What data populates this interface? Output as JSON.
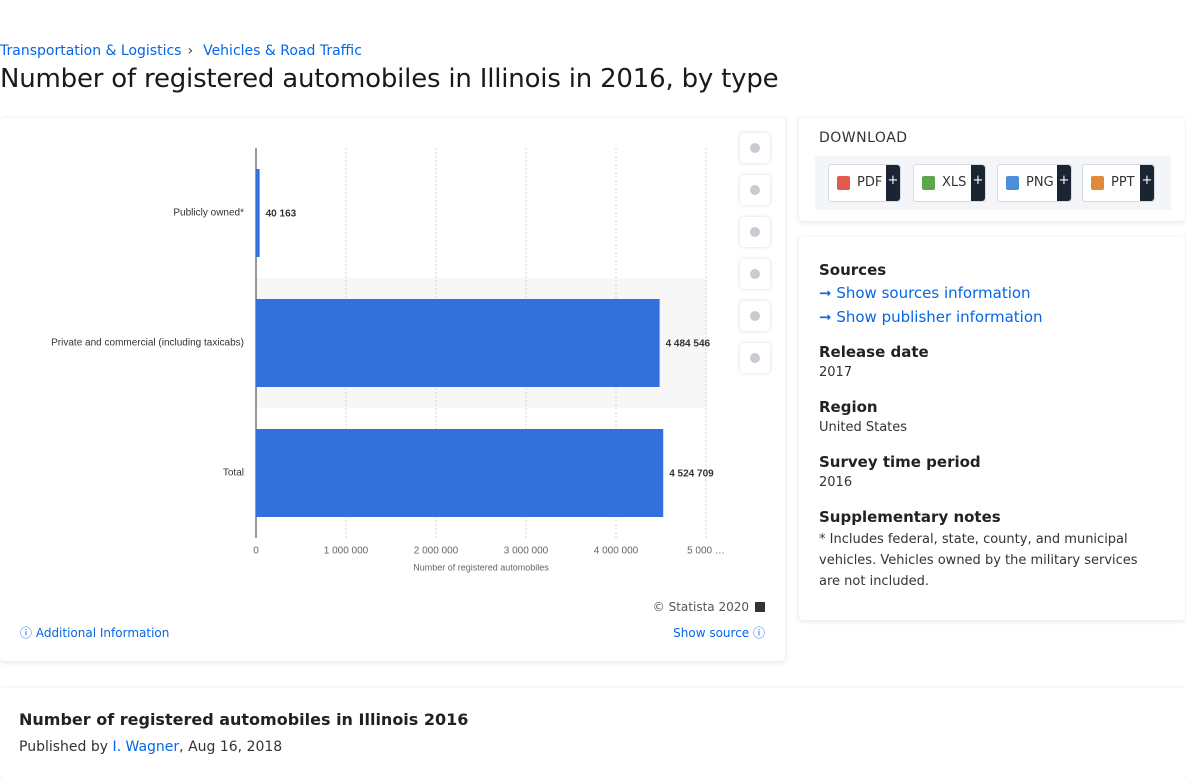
{
  "breadcrumbs": [
    "Transportation & Logistics",
    "Vehicles & Road Traffic"
  ],
  "breadcrumb_separator": "›",
  "title": "Number of registered automobiles in Illinois in 2016, by type",
  "chart_data": {
    "type": "hbar",
    "categories": [
      "Publicly owned*",
      "Private and commercial (including taxicabs)",
      "Total"
    ],
    "values": [
      40163,
      4484546,
      4524709
    ],
    "value_labels": [
      "40 163",
      "4 484 546",
      "4 524 709"
    ],
    "color": "#3370db",
    "xlim": [
      0,
      5000000
    ],
    "xticks": [
      0,
      {
        "value": 1000000,
        "label": "1 000 000"
      },
      {
        "value": 2000000,
        "label": "2 000 000"
      },
      {
        "value": 3000000,
        "label": "3 000 000"
      },
      {
        "value": 4000000,
        "label": "4 000 000"
      },
      {
        "value": 5000000,
        "label": "5 000 …"
      }
    ],
    "xlabel": "Number of registered automobiles",
    "grid": true
  },
  "chart_footer": {
    "copyright": "© Statista 2020",
    "additional": "Additional Information",
    "show_source": "Show source"
  },
  "download": {
    "title": "DOWNLOAD",
    "buttons": [
      "PDF",
      "XLS",
      "PNG",
      "PPT"
    ],
    "more": "+"
  },
  "details": {
    "sources_title": "Sources",
    "sources_link": "Show sources information",
    "publisher_link": "Show publisher information",
    "release_title": "Release date",
    "release": "2017",
    "region_title": "Region",
    "region": "United States",
    "period_title": "Survey time period",
    "period": "2016",
    "notes_title": "Supplementary notes",
    "notes": "* Includes federal, state, county, and municipal vehicles. Vehicles owned by the military services are not included."
  },
  "publication": {
    "title": "Number of registered automobiles in Illinois 2016",
    "published_by": "Published by",
    "author": "I. Wagner",
    "date": ", Aug 16, 2018"
  }
}
